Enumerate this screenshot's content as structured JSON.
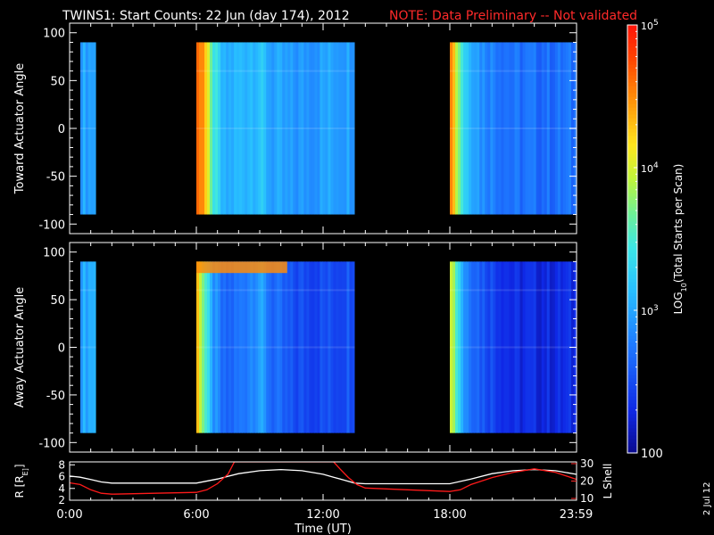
{
  "header": {
    "title": "TWINS1: Start Counts: 22 Jun (day 174), 2012",
    "note": "NOTE: Data Preliminary -- Not validated"
  },
  "side_date": "2 Jul 12",
  "chart_data": [
    {
      "type": "heatmap",
      "ylabel": "Toward Actuator Angle",
      "yticks": [
        100,
        50,
        0,
        -50,
        -100
      ],
      "ylim": [
        -110,
        110
      ],
      "angle_range": [
        -90,
        90
      ],
      "xlim_hours": [
        0,
        24
      ],
      "data_segments_hours": [
        [
          0.5,
          1.25
        ],
        [
          6.0,
          13.5
        ],
        [
          18.0,
          24.0
        ]
      ],
      "profile_log10": [
        [
          0.5,
          3.0
        ],
        [
          1.2,
          3.0
        ],
        [
          6.0,
          4.6
        ],
        [
          6.3,
          4.6
        ],
        [
          6.7,
          3.6
        ],
        [
          7.3,
          3.0
        ],
        [
          8.0,
          3.1
        ],
        [
          9.0,
          3.2
        ],
        [
          9.5,
          3.0
        ],
        [
          10.5,
          2.9
        ],
        [
          12.5,
          3.0
        ],
        [
          13.5,
          3.0
        ],
        [
          18.0,
          4.8
        ],
        [
          18.3,
          4.0
        ],
        [
          18.7,
          3.3
        ],
        [
          19.5,
          2.9
        ],
        [
          21.0,
          2.7
        ],
        [
          24.0,
          2.7
        ]
      ],
      "colors": [
        "#3bb8ff",
        "#28a8ff",
        "#ff9a10",
        "#ff4a00",
        "#ffa020",
        "#2f8cff",
        "#8fd9ff",
        "#3da0ff",
        "#1a4dff",
        "#45b4ff",
        "#1b6cff",
        "#ff3a00",
        "#ffb030",
        "#3a90ff"
      ]
    },
    {
      "type": "heatmap",
      "ylabel": "Away Actuator Angle",
      "yticks": [
        100,
        50,
        0,
        -50,
        -100
      ],
      "ylim": [
        -110,
        110
      ],
      "angle_range": [
        -90,
        90
      ],
      "xlim_hours": [
        0,
        24
      ],
      "data_segments_hours": [
        [
          0.5,
          1.25
        ],
        [
          6.0,
          13.5
        ],
        [
          18.0,
          24.0
        ]
      ],
      "profile_log10": [
        [
          0.5,
          3.0
        ],
        [
          1.2,
          3.1
        ],
        [
          6.0,
          4.4
        ],
        [
          6.3,
          3.8
        ],
        [
          6.7,
          3.0
        ],
        [
          7.3,
          2.6
        ],
        [
          8.0,
          2.7
        ],
        [
          9.0,
          3.0
        ],
        [
          9.5,
          2.7
        ],
        [
          10.5,
          2.5
        ],
        [
          12.5,
          2.5
        ],
        [
          13.5,
          2.6
        ],
        [
          18.0,
          4.2
        ],
        [
          18.3,
          3.6
        ],
        [
          18.7,
          2.9
        ],
        [
          19.5,
          2.6
        ],
        [
          21.0,
          2.3
        ],
        [
          24.0,
          2.3
        ]
      ],
      "top_band_log10": 4.5
    },
    {
      "type": "line",
      "ylabel": "R [R_E]",
      "y2label": "L Shell",
      "xlabel": "Time (UT)",
      "xticks": [
        "0:00",
        "6:00",
        "12:00",
        "18:00",
        "23:59"
      ],
      "xtick_hours": [
        0,
        6,
        12,
        18,
        23.98
      ],
      "yticks": [
        2,
        4,
        6,
        8
      ],
      "ylim": [
        2,
        8.5
      ],
      "y2ticks": [
        10,
        20,
        30
      ],
      "y2lim": [
        9,
        31
      ],
      "series": [
        {
          "color": "#ffffff",
          "axis": "left",
          "x": [
            0,
            0.5,
            1,
            1.5,
            2,
            3,
            4,
            5,
            6,
            7,
            8,
            9,
            10,
            11,
            12,
            12.5,
            13,
            13.5,
            14,
            15,
            16,
            17,
            18,
            19,
            20,
            21,
            22,
            23,
            23.98
          ],
          "y": [
            6.1,
            5.9,
            5.5,
            5.1,
            4.9,
            4.9,
            4.9,
            4.9,
            4.9,
            5.6,
            6.5,
            7.0,
            7.2,
            7.0,
            6.4,
            5.9,
            5.4,
            4.9,
            4.8,
            4.8,
            4.8,
            4.8,
            4.8,
            5.6,
            6.5,
            7.0,
            7.2,
            7.0,
            6.4
          ]
        },
        {
          "color": "#ff1a1a",
          "axis": "right",
          "x": [
            0,
            0.5,
            1,
            1.5,
            2,
            4,
            6,
            6.5,
            7,
            7.5,
            7.8,
            12.5,
            12.8,
            13.2,
            13.6,
            14,
            16,
            18,
            18.5,
            19,
            20,
            21,
            22,
            23,
            23.98
          ],
          "y": [
            19,
            18,
            15,
            13,
            12.5,
            13,
            13.5,
            15,
            18.5,
            24,
            31,
            31,
            27,
            22,
            18,
            16,
            15,
            14,
            15,
            18,
            22,
            25,
            27,
            25,
            21
          ]
        }
      ]
    }
  ],
  "colorbar": {
    "label": "LOG10(Total Starts per Scan)",
    "ticks": [
      {
        "exp": "5",
        "value": 5
      },
      {
        "exp": "4",
        "value": 4
      },
      {
        "exp": "3",
        "value": 3
      },
      {
        "text": "100",
        "value": 2
      }
    ],
    "range_log10": [
      2,
      5
    ]
  }
}
